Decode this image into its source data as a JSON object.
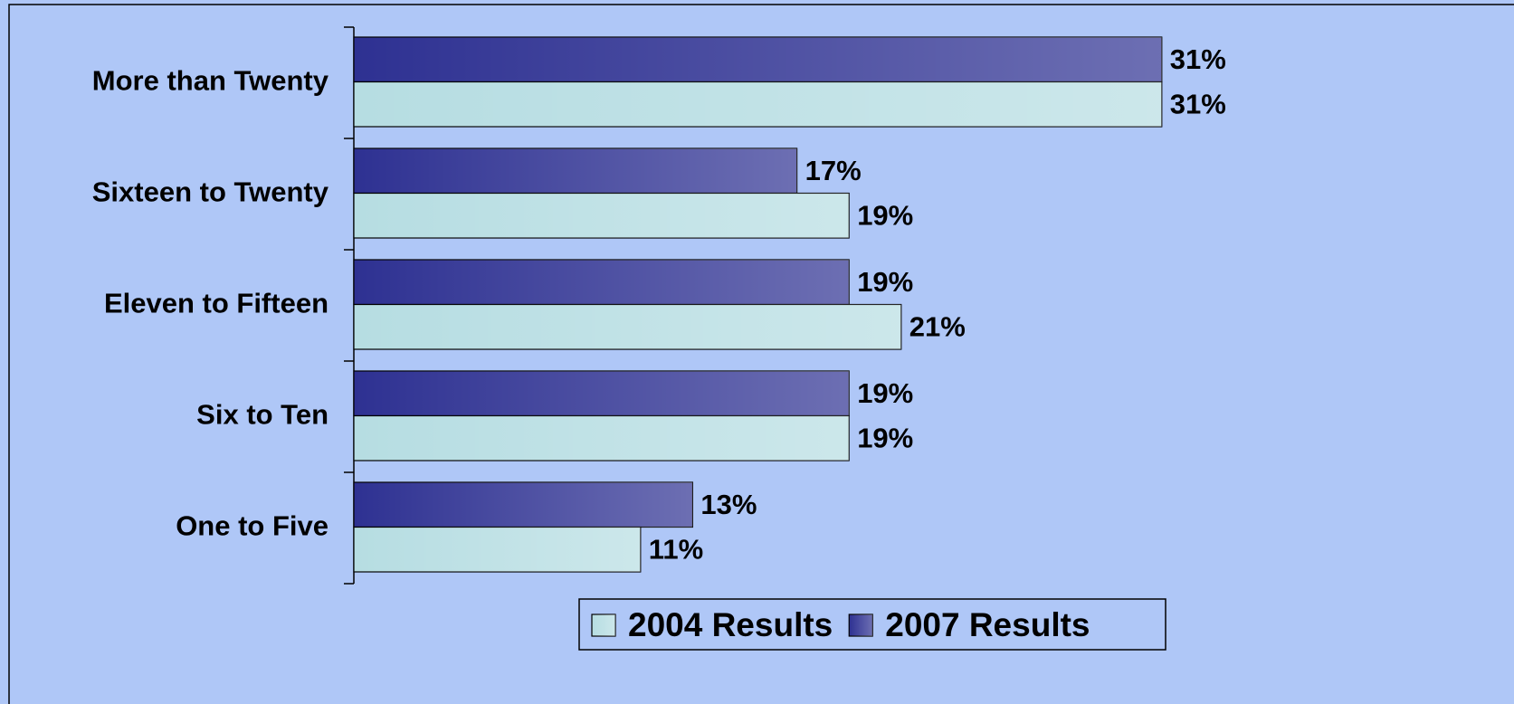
{
  "chart_data": {
    "type": "bar",
    "orientation": "horizontal",
    "categories": [
      "More than Twenty",
      "Sixteen to Twenty",
      "Eleven to Fifteen",
      "Six to Ten",
      "One to Five"
    ],
    "series": [
      {
        "name": "2004 Results",
        "color": "#b6dde2",
        "values": [
          31,
          19,
          21,
          19,
          11
        ],
        "value_labels": [
          "31%",
          "19%",
          "21%",
          "19%",
          "11%"
        ]
      },
      {
        "name": "2007 Results",
        "color": "#2e3192",
        "values": [
          31,
          17,
          19,
          19,
          13
        ],
        "value_labels": [
          "31%",
          "17%",
          "19%",
          "19%",
          "13%"
        ]
      }
    ],
    "xlim": [
      0,
      40
    ],
    "legend": "bottom"
  }
}
